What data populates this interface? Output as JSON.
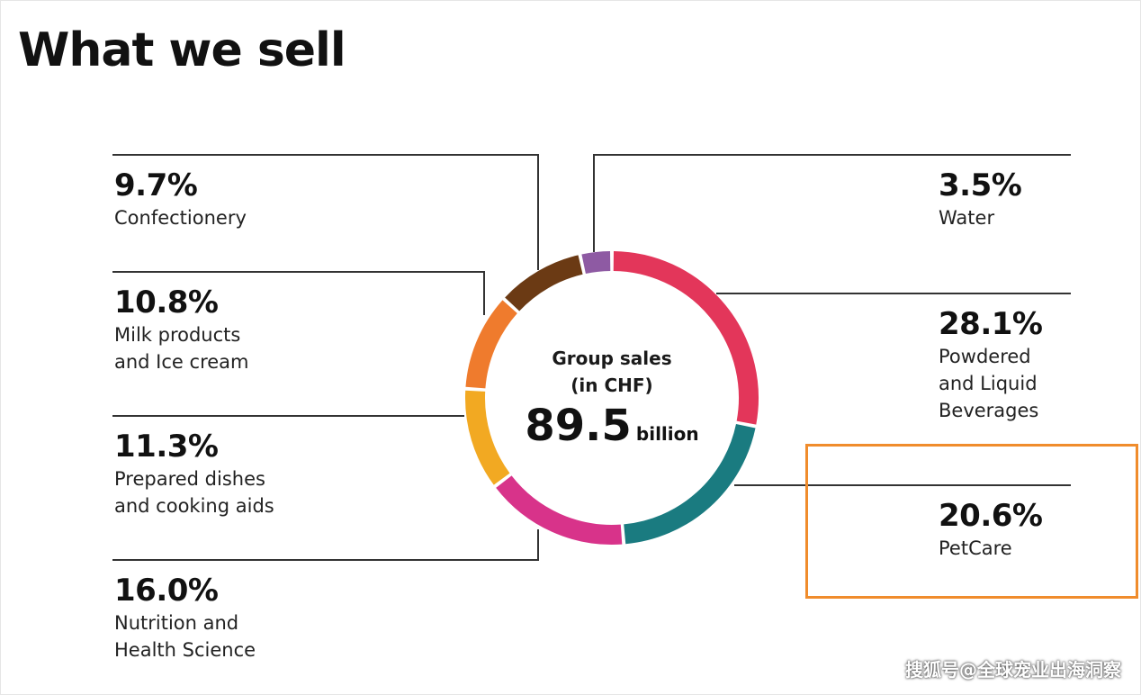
{
  "title": "What we sell",
  "watermark": "搜狐号@全球宠业出海洞察",
  "colors": {
    "highlight": "#f08c2c",
    "text": "#111111",
    "lines": "#333333"
  },
  "chart_data": {
    "type": "pie",
    "donut": true,
    "center": {
      "line1": "Group sales",
      "line2": "(in CHF)",
      "total": "89.5",
      "unit": "billion"
    },
    "highlighted_category": "PetCare",
    "slices": [
      {
        "label_lines": [
          "Powdered",
          "and Liquid",
          "Beverages"
        ],
        "label": "Powdered and Liquid Beverages",
        "value": 28.1,
        "pct": "28.1%",
        "color": "#e3365a"
      },
      {
        "label_lines": [
          "PetCare"
        ],
        "label": "PetCare",
        "value": 20.6,
        "pct": "20.6%",
        "color": "#1a7b80"
      },
      {
        "label_lines": [
          "Nutrition and",
          "Health Science"
        ],
        "label": "Nutrition and Health Science",
        "value": 16.0,
        "pct": "16.0%",
        "color": "#d8338a"
      },
      {
        "label_lines": [
          "Prepared dishes",
          "and cooking aids"
        ],
        "label": "Prepared dishes and cooking aids",
        "value": 11.3,
        "pct": "11.3%",
        "color": "#f2a922"
      },
      {
        "label_lines": [
          "Milk products",
          "and Ice cream"
        ],
        "label": "Milk products and Ice cream",
        "value": 10.8,
        "pct": "10.8%",
        "color": "#ef7b2d"
      },
      {
        "label_lines": [
          "Confectionery"
        ],
        "label": "Confectionery",
        "value": 9.7,
        "pct": "9.7%",
        "color": "#6b3a14"
      },
      {
        "label_lines": [
          "Water"
        ],
        "label": "Water",
        "value": 3.5,
        "pct": "3.5%",
        "color": "#8e5aa3"
      }
    ]
  }
}
